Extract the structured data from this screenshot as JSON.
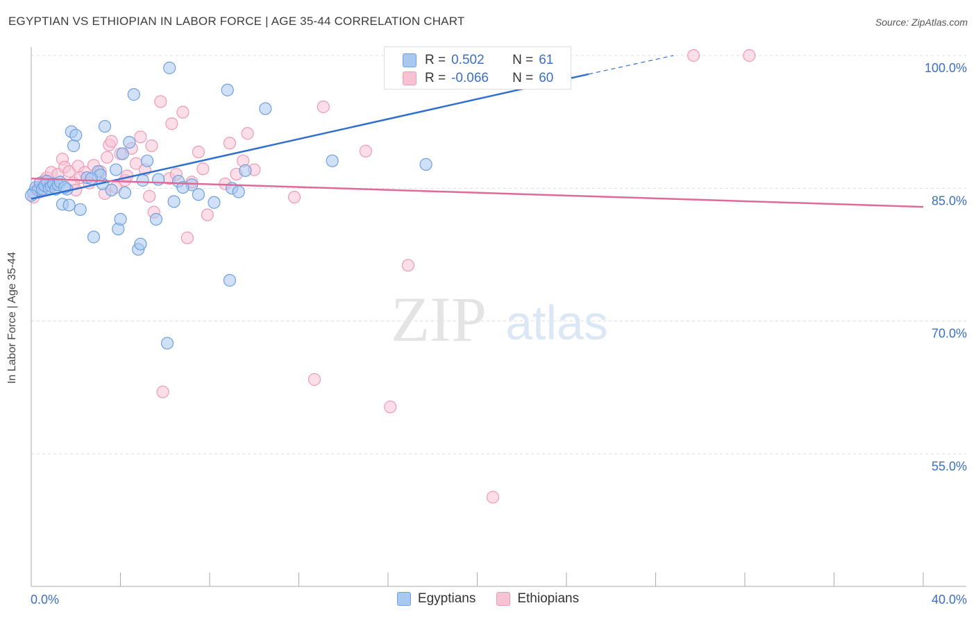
{
  "title": "EGYPTIAN VS ETHIOPIAN IN LABOR FORCE | AGE 35-44 CORRELATION CHART",
  "source": "Source: ZipAtlas.com",
  "watermark": {
    "zip": "ZIP",
    "atlas": "atlas"
  },
  "legend": {
    "rows": [
      {
        "r_label": "R =",
        "r_value": "0.502",
        "n_label": "N =",
        "n_value": "61"
      },
      {
        "r_label": "R =",
        "r_value": "-0.066",
        "n_label": "N =",
        "n_value": "60"
      }
    ]
  },
  "bottom_legend": {
    "egyptians": "Egyptians",
    "ethiopians": "Ethiopians"
  },
  "colors": {
    "egyptians_fill": "#a9c8f0",
    "egyptians_stroke": "#6d9fe0",
    "egyptians_line": "#2f6fd0",
    "ethiopians_fill": "#f7c3d3",
    "ethiopians_stroke": "#ee9ab5",
    "ethiopians_line": "#e0699a",
    "tick_label": "#3a6fc4"
  },
  "chart_data": {
    "type": "scatter",
    "title": "EGYPTIAN VS ETHIOPIAN IN LABOR FORCE | AGE 35-44 CORRELATION CHART",
    "xlabel": "",
    "ylabel": "In Labor Force | Age 35-44",
    "xlim": [
      0,
      40
    ],
    "ylim": [
      40,
      101.5
    ],
    "x_tick_labels": [
      "0.0%",
      "40.0%"
    ],
    "y_ticks": [
      55,
      70,
      85,
      100
    ],
    "y_tick_labels": [
      "55.0%",
      "70.0%",
      "85.0%",
      "100.0%"
    ],
    "grid": true,
    "legend_position": "top-center",
    "series": [
      {
        "name": "Egyptians",
        "r": 0.502,
        "n": 61,
        "trend": {
          "x0": 0,
          "y0": 83.8,
          "x1": 25.0,
          "y1": 97.9,
          "dash_to_x": 28.8,
          "dash_to_y": 100.0
        },
        "points": [
          [
            0.1,
            84.5
          ],
          [
            0.2,
            85.1
          ],
          [
            0.3,
            84.8
          ],
          [
            0.4,
            85.6
          ],
          [
            0.5,
            84.9
          ],
          [
            0.6,
            85.3
          ],
          [
            0.7,
            85.8
          ],
          [
            0.8,
            85.0
          ],
          [
            0.9,
            85.2
          ],
          [
            1.0,
            85.5
          ],
          [
            1.1,
            84.9
          ],
          [
            1.2,
            85.4
          ],
          [
            1.3,
            85.7
          ],
          [
            1.4,
            83.2
          ],
          [
            1.6,
            84.9
          ],
          [
            1.7,
            83.1
          ],
          [
            1.8,
            91.4
          ],
          [
            1.9,
            89.8
          ],
          [
            2.0,
            91.0
          ],
          [
            2.2,
            82.6
          ],
          [
            2.5,
            86.2
          ],
          [
            2.8,
            79.5
          ],
          [
            3.0,
            86.9
          ],
          [
            3.2,
            85.5
          ],
          [
            3.3,
            92.0
          ],
          [
            3.6,
            84.8
          ],
          [
            3.8,
            87.1
          ],
          [
            3.9,
            80.4
          ],
          [
            4.0,
            81.5
          ],
          [
            4.1,
            88.9
          ],
          [
            4.2,
            84.5
          ],
          [
            4.4,
            90.2
          ],
          [
            4.6,
            95.6
          ],
          [
            4.8,
            78.1
          ],
          [
            4.9,
            78.7
          ],
          [
            5.2,
            88.1
          ],
          [
            5.6,
            81.5
          ],
          [
            5.7,
            86.0
          ],
          [
            6.1,
            67.5
          ],
          [
            6.2,
            98.6
          ],
          [
            6.4,
            83.5
          ],
          [
            6.6,
            85.8
          ],
          [
            7.2,
            85.4
          ],
          [
            7.5,
            84.3
          ],
          [
            8.2,
            83.4
          ],
          [
            8.8,
            96.1
          ],
          [
            8.9,
            74.6
          ],
          [
            9.0,
            85.0
          ],
          [
            9.6,
            87.0
          ],
          [
            10.5,
            94.0
          ],
          [
            13.5,
            88.1
          ],
          [
            17.7,
            87.7
          ],
          [
            20.0,
            100.0
          ],
          [
            22.0,
            100.0
          ],
          [
            3.1,
            86.5
          ],
          [
            2.7,
            86.1
          ],
          [
            1.5,
            85.1
          ],
          [
            0.0,
            84.2
          ],
          [
            5.0,
            85.9
          ],
          [
            9.3,
            84.6
          ],
          [
            6.8,
            85.1
          ]
        ]
      },
      {
        "name": "Ethiopians",
        "r": -0.066,
        "n": 60,
        "trend": {
          "x0": 0,
          "y0": 86.1,
          "x1": 40.0,
          "y1": 82.9
        },
        "points": [
          [
            0.1,
            84.0
          ],
          [
            0.3,
            85.0
          ],
          [
            0.4,
            84.6
          ],
          [
            0.6,
            85.9
          ],
          [
            0.7,
            86.2
          ],
          [
            0.9,
            86.8
          ],
          [
            1.0,
            85.5
          ],
          [
            1.2,
            86.6
          ],
          [
            1.4,
            88.3
          ],
          [
            1.5,
            87.4
          ],
          [
            1.7,
            86.9
          ],
          [
            1.9,
            85.6
          ],
          [
            2.0,
            84.8
          ],
          [
            2.1,
            87.5
          ],
          [
            2.4,
            86.8
          ],
          [
            2.6,
            85.6
          ],
          [
            2.8,
            87.6
          ],
          [
            3.1,
            86.9
          ],
          [
            3.3,
            84.4
          ],
          [
            3.5,
            89.9
          ],
          [
            3.6,
            90.3
          ],
          [
            3.8,
            85.1
          ],
          [
            4.0,
            88.9
          ],
          [
            4.2,
            85.9
          ],
          [
            4.3,
            86.4
          ],
          [
            4.5,
            89.5
          ],
          [
            4.7,
            87.8
          ],
          [
            4.9,
            90.8
          ],
          [
            5.1,
            87.1
          ],
          [
            5.3,
            84.1
          ],
          [
            5.4,
            89.8
          ],
          [
            5.5,
            82.3
          ],
          [
            5.8,
            94.8
          ],
          [
            6.2,
            86.1
          ],
          [
            6.3,
            92.3
          ],
          [
            6.5,
            86.6
          ],
          [
            6.8,
            93.6
          ],
          [
            7.0,
            79.4
          ],
          [
            7.2,
            85.7
          ],
          [
            7.5,
            89.1
          ],
          [
            7.7,
            87.2
          ],
          [
            7.9,
            82.0
          ],
          [
            8.7,
            85.5
          ],
          [
            8.9,
            90.1
          ],
          [
            9.2,
            86.6
          ],
          [
            9.5,
            88.1
          ],
          [
            9.7,
            91.2
          ],
          [
            10.0,
            87.1
          ],
          [
            11.8,
            84.0
          ],
          [
            12.7,
            63.4
          ],
          [
            13.1,
            94.2
          ],
          [
            15.0,
            89.2
          ],
          [
            16.1,
            60.3
          ],
          [
            16.9,
            76.3
          ],
          [
            20.7,
            50.1
          ],
          [
            29.7,
            100.0
          ],
          [
            32.2,
            100.0
          ],
          [
            5.9,
            62.0
          ],
          [
            3.4,
            88.5
          ],
          [
            2.2,
            86.2
          ]
        ]
      }
    ]
  }
}
